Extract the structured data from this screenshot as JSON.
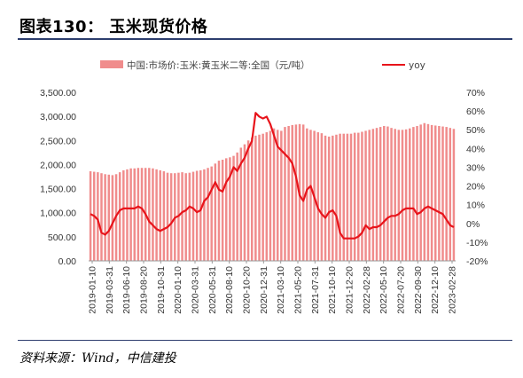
{
  "figure": {
    "title": "图表130：  玉米现货价格",
    "source": "资料来源：Wind，中信建投"
  },
  "chart_data": {
    "type": "bar+line",
    "legend": {
      "bar_label": "中国:市场价:玉米:黄玉米二等:全国（元/吨）",
      "line_label": "yoy",
      "position": "top"
    },
    "colors": {
      "bar": "#f08c8c",
      "line": "#e8141b"
    },
    "y_left": {
      "min": 0,
      "max": 3500,
      "step": 500,
      "tick_labels": [
        "0.00",
        "500.00",
        "1,000.00",
        "1,500.00",
        "2,000.00",
        "2,500.00",
        "3,000.00",
        "3,500.00"
      ]
    },
    "y_right": {
      "min": -20,
      "max": 70,
      "step": 10,
      "tick_labels": [
        "-20%",
        "-10%",
        "0%",
        "10%",
        "20%",
        "30%",
        "40%",
        "50%",
        "60%",
        "70%"
      ]
    },
    "x_tick_labels": [
      "2019-01-10",
      "2019-03-31",
      "2019-06-10",
      "2019-08-20",
      "2019-10-31",
      "2020-01-10",
      "2020-03-31",
      "2020-05-31",
      "2020-08-10",
      "2020-10-20",
      "2020-12-31",
      "2021-03-10",
      "2021-05-20",
      "2021-07-31",
      "2021-10-10",
      "2021-12-20",
      "2022-02-28",
      "2022-05-10",
      "2022-07-20",
      "2022-09-30",
      "2022-12-10",
      "2023-02-28"
    ],
    "price": [
      1860,
      1850,
      1840,
      1820,
      1800,
      1790,
      1780,
      1800,
      1840,
      1880,
      1900,
      1920,
      1920,
      1930,
      1930,
      1930,
      1930,
      1920,
      1900,
      1880,
      1860,
      1830,
      1820,
      1820,
      1830,
      1840,
      1820,
      1830,
      1850,
      1870,
      1880,
      1900,
      1930,
      1960,
      2020,
      2080,
      2100,
      2130,
      2150,
      2180,
      2250,
      2350,
      2420,
      2500,
      2560,
      2600,
      2620,
      2640,
      2670,
      2700,
      2750,
      2720,
      2700,
      2780,
      2800,
      2820,
      2830,
      2840,
      2830,
      2750,
      2720,
      2700,
      2670,
      2650,
      2600,
      2580,
      2600,
      2620,
      2640,
      2640,
      2640,
      2640,
      2660,
      2660,
      2680,
      2700,
      2720,
      2740,
      2760,
      2780,
      2800,
      2790,
      2760,
      2740,
      2720,
      2720,
      2730,
      2750,
      2780,
      2800,
      2830,
      2860,
      2840,
      2820,
      2810,
      2800,
      2790,
      2780,
      2760,
      2740
    ],
    "yoy": [
      5,
      4,
      2,
      -5,
      -6,
      -4,
      0,
      4,
      7,
      8,
      8,
      8,
      8,
      9,
      8,
      5,
      1,
      -1,
      -3,
      -4,
      -3,
      -2,
      0,
      3,
      4,
      6,
      7,
      9,
      8,
      6,
      7,
      12,
      14,
      18,
      22,
      18,
      17,
      22,
      25,
      30,
      28,
      32,
      35,
      40,
      44,
      59,
      57,
      56,
      57,
      53,
      47,
      41,
      39,
      37,
      35,
      32,
      25,
      15,
      12,
      18,
      20,
      14,
      8,
      5,
      3,
      6,
      7,
      4,
      -5,
      -8,
      -8,
      -8,
      -8,
      -7,
      -5,
      -1,
      -3,
      -2,
      -2,
      -1,
      1,
      3,
      4,
      4,
      5,
      7,
      8,
      8,
      8,
      5,
      6,
      8,
      9,
      8,
      7,
      6,
      5,
      2,
      -1,
      -2
    ]
  }
}
